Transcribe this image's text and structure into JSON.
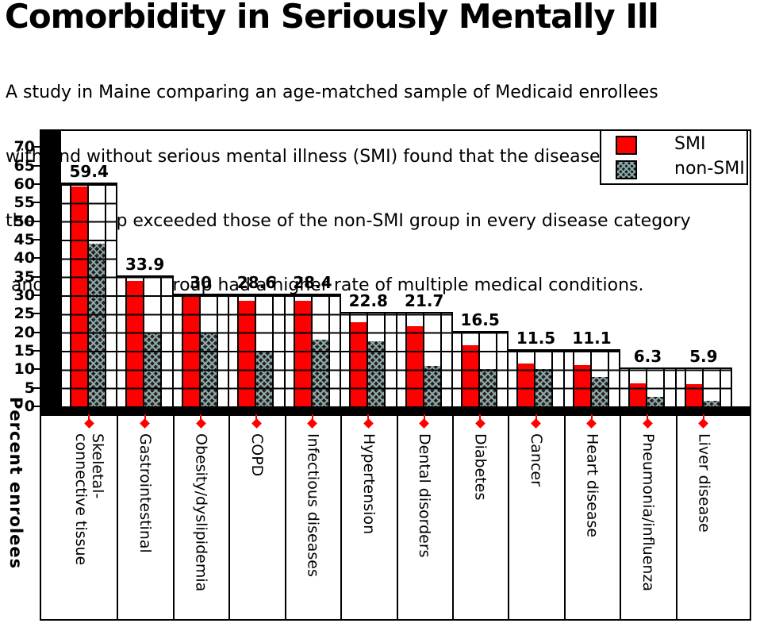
{
  "title": "Comorbidity in Seriously Mentally Ill",
  "subtitle_lines": [
    "A study in Maine comparing an age-matched sample of Medicaid enrollees",
    "with and without serious mental illness (SMI) found that the disease rates for",
    "the SMI group exceeded those of the non-SMI group in every disease category",
    " and that the SMI group had a higher rate of multiple medical conditions."
  ],
  "legend": {
    "smi_label": "SMI",
    "non_smi_label": "non-SMI",
    "position": "top-right"
  },
  "y_axis": {
    "title": "Percent enrolees",
    "ticks": [
      70,
      65,
      60,
      55,
      50,
      45,
      40,
      35,
      30,
      25,
      20,
      15,
      10,
      5,
      0
    ]
  },
  "colors": {
    "smi_bar": "#ff0000",
    "non_smi_bar_base": "#1a1a1a",
    "non_smi_hatch_line": "#8cafaf",
    "axis": "#000000",
    "marker_diamond": "#ff0000",
    "background": "#ffffff"
  },
  "chart_data": {
    "type": "bar",
    "title": "Comorbidity in Seriously Mentally Ill",
    "categories": [
      "Skeletal-\nconnective tissue",
      "Gastrointestinal",
      "Obesity/dyslipidemia",
      "COPD",
      "Infectious diseases",
      "Hypertension",
      "Dental disorders",
      "Diabetes",
      "Cancer",
      "Heart disease",
      "Pneumonia/influenza",
      "Liver disease"
    ],
    "series": [
      {
        "name": "SMI",
        "values": [
          59.4,
          33.9,
          30,
          28.6,
          28.4,
          22.8,
          21.7,
          16.5,
          11.5,
          11.1,
          6.3,
          5.9
        ]
      },
      {
        "name": "non-SMI",
        "values": [
          44,
          20,
          20,
          15,
          18,
          17.5,
          11,
          10,
          10,
          8,
          2.5,
          1.5
        ],
        "estimated_from_gridlines": true
      }
    ],
    "data_labels": [
      "59.4",
      "33.9",
      "30",
      "28.6",
      "28.4",
      "22.8",
      "21.7",
      "16.5",
      "11.5",
      "11.1",
      "6.3",
      "5.9"
    ],
    "xlabel": "",
    "ylabel": "Percent enrolees",
    "ylim": [
      0,
      75
    ],
    "y_tick_step": 5,
    "grid": true,
    "legend_position": "top-right"
  }
}
